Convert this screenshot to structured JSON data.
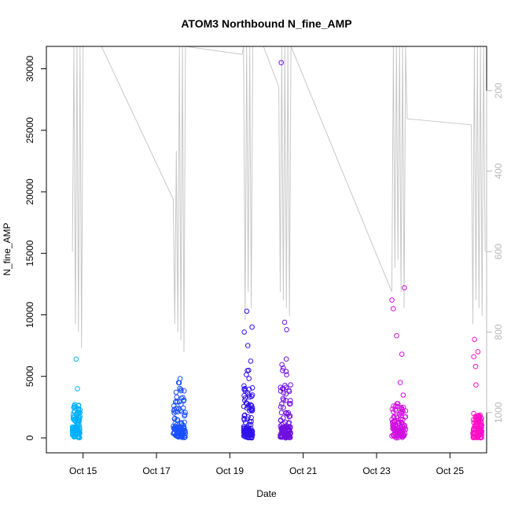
{
  "chart_data": {
    "type": "scatter",
    "title": "ATOM3 Northbound N_fine_AMP",
    "xlabel": "Date",
    "ylabel": "N_fine_AMP",
    "xlim": [
      "2012-10-14T00:00",
      "2012-10-26T00:00"
    ],
    "ylim": [
      0,
      31500
    ],
    "x_ticks": [
      "Oct 15",
      "Oct 17",
      "Oct 19",
      "Oct 21",
      "Oct 23",
      "Oct 25"
    ],
    "x_tick_values": [
      "2012-10-15",
      "2012-10-17",
      "2012-10-19",
      "2012-10-21",
      "2012-10-23",
      "2012-10-25"
    ],
    "y_ticks": [
      0,
      5000,
      10000,
      15000,
      20000,
      25000,
      30000
    ],
    "right_axis": {
      "ylim_reversed": [
        90,
        1100
      ],
      "ticks": [
        200,
        400,
        600,
        800,
        1000
      ],
      "color": "#b8b8b8"
    },
    "grid": false,
    "point_colors_gradient": [
      "#00b0ff",
      "#1a50ff",
      "#3010f0",
      "#7010e0",
      "#d010e0",
      "#ff10c8"
    ],
    "series": [
      {
        "marker": "open-circle",
        "clusters": [
          {
            "x_start": "2012-10-14T17:00",
            "x_end": "2012-10-14T22:00",
            "y_typical_max": 3500,
            "outliers": [
              4000,
              6400
            ],
            "color": "#00b0ff"
          },
          {
            "x_start": "2012-10-17T11:00",
            "x_end": "2012-10-17T19:00",
            "y_typical_max": 5000,
            "outliers": [],
            "color": "#1a50ff"
          },
          {
            "x_start": "2012-10-19T09:00",
            "x_end": "2012-10-19T15:00",
            "y_typical_max": 6500,
            "outliers": [
              7500,
              8600,
              9000,
              10300
            ],
            "color": "#3010f0"
          },
          {
            "x_start": "2012-10-20T09:00",
            "x_end": "2012-10-20T16:00",
            "y_typical_max": 7000,
            "outliers": [
              8800,
              9400,
              30500
            ],
            "color": "#7010e0"
          },
          {
            "x_start": "2012-10-23T10:00",
            "x_end": "2012-10-23T19:00",
            "y_typical_max": 3500,
            "outliers": [
              4500,
              6800,
              8300,
              10500,
              11200,
              12200
            ],
            "color": "#d010e0"
          },
          {
            "x_start": "2012-10-25T15:00",
            "x_end": "2012-10-25T21:00",
            "y_typical_max": 2000,
            "outliers": [
              4300,
              5800,
              6600,
              7000,
              8000
            ],
            "color": "#ff10c8"
          }
        ]
      },
      {
        "marker": "line",
        "axis": "right",
        "color": "#c8c8c8",
        "points": [
          [
            "2012-10-14T17:00",
            600
          ],
          [
            "2012-10-14T18:00",
            90
          ],
          [
            "2012-10-14T19:00",
            780
          ],
          [
            "2012-10-14T20:00",
            90
          ],
          [
            "2012-10-14T21:00",
            800
          ],
          [
            "2012-10-14T22:00",
            90
          ],
          [
            "2012-10-14T23:00",
            840
          ],
          [
            "2012-10-15T00:00",
            90
          ],
          [
            "2012-10-15T01:00",
            90
          ],
          [
            "2012-10-15T12:00",
            90
          ],
          [
            "2012-10-17T11:00",
            470
          ],
          [
            "2012-10-17T12:00",
            780
          ],
          [
            "2012-10-17T13:00",
            350
          ],
          [
            "2012-10-17T14:00",
            800
          ],
          [
            "2012-10-17T15:00",
            90
          ],
          [
            "2012-10-17T16:00",
            820
          ],
          [
            "2012-10-17T17:00",
            90
          ],
          [
            "2012-10-17T18:00",
            850
          ],
          [
            "2012-10-17T19:00",
            90
          ],
          [
            "2012-10-19T08:00",
            110
          ],
          [
            "2012-10-19T09:00",
            90
          ],
          [
            "2012-10-19T10:00",
            770
          ],
          [
            "2012-10-19T11:00",
            90
          ],
          [
            "2012-10-19T12:00",
            700
          ],
          [
            "2012-10-19T13:00",
            90
          ],
          [
            "2012-10-19T14:00",
            740
          ],
          [
            "2012-10-19T15:00",
            90
          ],
          [
            "2012-10-19T22:00",
            90
          ],
          [
            "2012-10-20T08:00",
            190
          ],
          [
            "2012-10-20T09:00",
            700
          ],
          [
            "2012-10-20T10:00",
            90
          ],
          [
            "2012-10-20T11:00",
            720
          ],
          [
            "2012-10-20T12:00",
            90
          ],
          [
            "2012-10-20T13:00",
            740
          ],
          [
            "2012-10-20T14:00",
            90
          ],
          [
            "2012-10-20T15:00",
            760
          ],
          [
            "2012-10-20T16:00",
            90
          ],
          [
            "2012-10-23T10:00",
            700
          ],
          [
            "2012-10-23T11:00",
            90
          ],
          [
            "2012-10-23T12:00",
            640
          ],
          [
            "2012-10-23T13:00",
            90
          ],
          [
            "2012-10-23T14:00",
            620
          ],
          [
            "2012-10-23T15:00",
            90
          ],
          [
            "2012-10-23T16:00",
            700
          ],
          [
            "2012-10-23T17:00",
            90
          ],
          [
            "2012-10-23T18:00",
            740
          ],
          [
            "2012-10-23T19:00",
            90
          ],
          [
            "2012-10-23T20:00",
            270
          ],
          [
            "2012-10-25T14:00",
            285
          ],
          [
            "2012-10-25T15:00",
            780
          ],
          [
            "2012-10-25T16:00",
            90
          ],
          [
            "2012-10-25T17:00",
            720
          ],
          [
            "2012-10-25T18:00",
            90
          ],
          [
            "2012-10-25T19:00",
            740
          ],
          [
            "2012-10-25T20:00",
            90
          ],
          [
            "2012-10-25T21:00",
            760
          ],
          [
            "2012-10-25T22:00",
            90
          ],
          [
            "2012-10-25T23:00",
            600
          ]
        ]
      }
    ]
  }
}
